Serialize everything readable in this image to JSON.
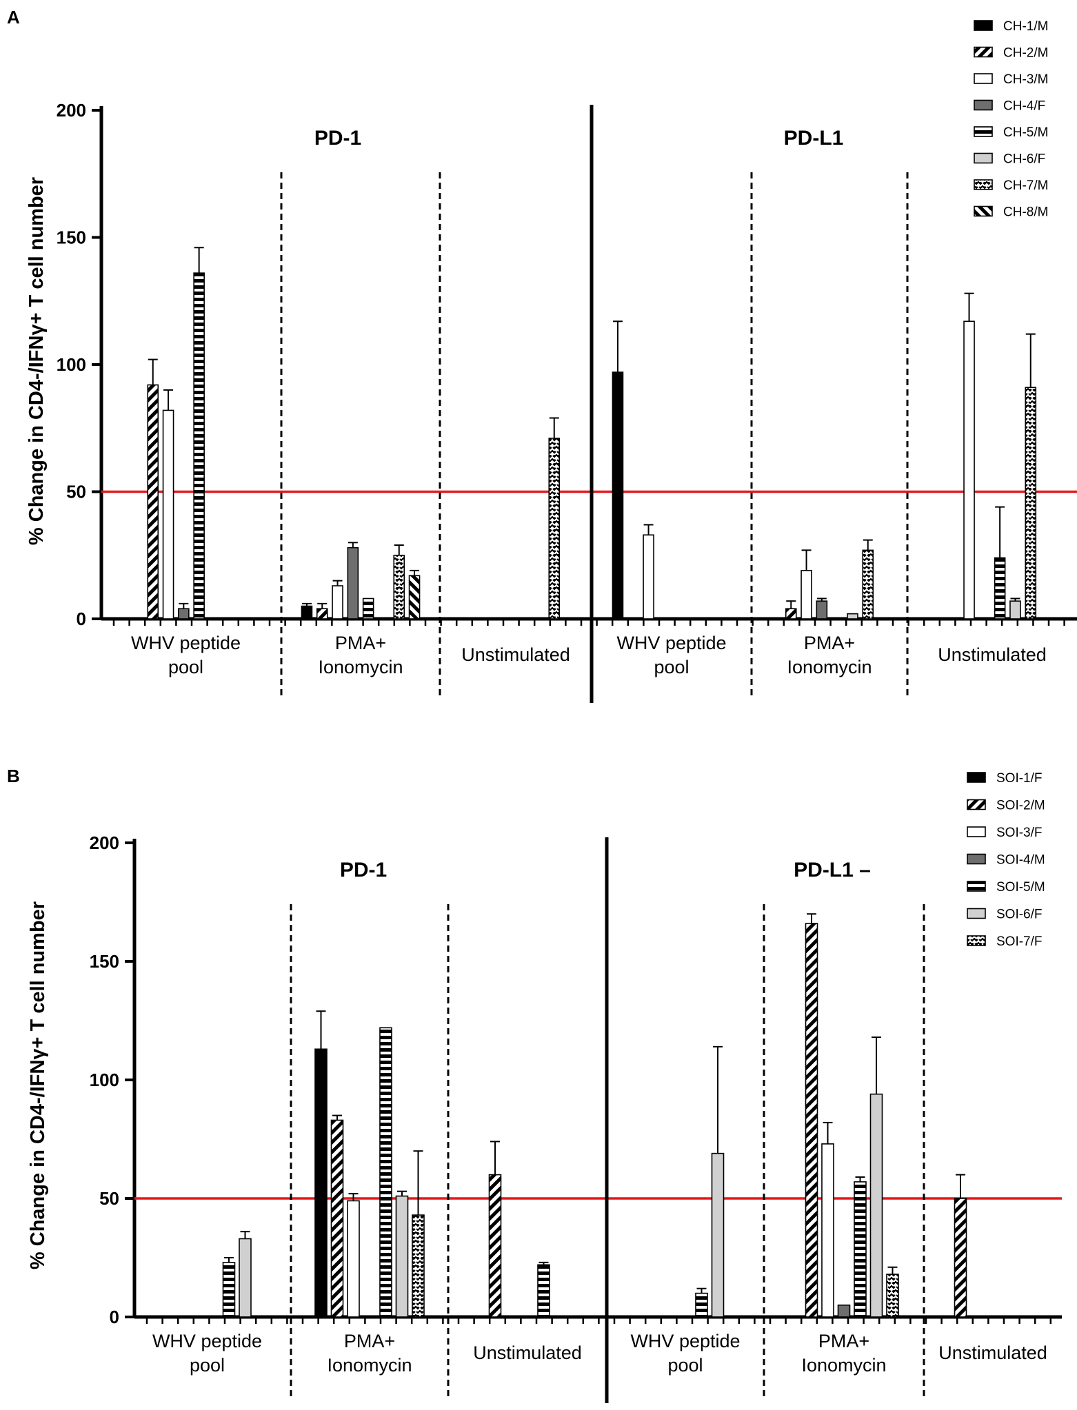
{
  "figure_title": "",
  "colors": {
    "threshold": "#e31a1c",
    "ink": "#000000",
    "dark_gray": "#6e6e6e",
    "light_gray": "#d0d0d0"
  },
  "chart_data": [
    {
      "panel": "A",
      "type": "bar",
      "ylabel": "% Change in CD4-/IFNγ+ T cell number",
      "ylim": [
        0,
        200
      ],
      "yticks": [
        "0",
        "50",
        "100",
        "150",
        "200"
      ],
      "threshold": 50,
      "section_titles": [
        "PD-1",
        "PD-L1"
      ],
      "categories": [
        "WHV peptide pool",
        "PMA+ Ionomycin",
        "Unstimulated",
        "WHV peptide pool",
        "PMA+ Ionomycin",
        "Unstimulated"
      ],
      "category_labels": [
        [
          "WHV peptide",
          "pool"
        ],
        [
          "PMA+",
          "Ionomycin"
        ],
        [
          "Unstimulated"
        ],
        [
          "WHV peptide",
          "pool"
        ],
        [
          "PMA+",
          "Ionomycin"
        ],
        [
          "Unstimulated"
        ]
      ],
      "series": [
        {
          "name": "CH-1/M",
          "pattern": "solid-black",
          "values": [
            0,
            5,
            0,
            97,
            0,
            0
          ],
          "errors": [
            0,
            1,
            0,
            20,
            0,
            0
          ]
        },
        {
          "name": "CH-2/M",
          "pattern": "diag-back",
          "values": [
            92,
            4,
            0,
            0,
            4,
            0
          ],
          "errors": [
            10,
            2,
            0,
            0,
            3,
            0
          ]
        },
        {
          "name": "CH-3/M",
          "pattern": "white",
          "values": [
            82,
            13,
            0,
            33,
            19,
            117
          ],
          "errors": [
            8,
            2,
            0,
            4,
            8,
            11
          ]
        },
        {
          "name": "CH-4/F",
          "pattern": "dark-gray",
          "values": [
            4,
            28,
            0,
            0,
            7,
            0
          ],
          "errors": [
            2,
            2,
            0,
            0,
            1,
            0
          ]
        },
        {
          "name": "CH-5/M",
          "pattern": "horiz-stripes",
          "values": [
            136,
            8,
            0,
            0,
            0,
            24
          ],
          "errors": [
            10,
            0,
            0,
            0,
            0,
            20
          ]
        },
        {
          "name": "CH-6/F",
          "pattern": "light-gray",
          "values": [
            0,
            0,
            0,
            0,
            2,
            7
          ],
          "errors": [
            0,
            0,
            0,
            0,
            0,
            1
          ]
        },
        {
          "name": "CH-7/M",
          "pattern": "zigzag",
          "values": [
            0,
            25,
            71,
            0,
            27,
            91
          ],
          "errors": [
            0,
            4,
            8,
            0,
            4,
            21
          ]
        },
        {
          "name": "CH-8/M",
          "pattern": "diag-fwd",
          "values": [
            0,
            17,
            0,
            0,
            0,
            0
          ],
          "errors": [
            0,
            2,
            0,
            0,
            0,
            0
          ]
        }
      ]
    },
    {
      "panel": "B",
      "type": "bar",
      "ylabel": "% Change in CD4-/IFNγ+ T cell number",
      "ylim": [
        0,
        200
      ],
      "yticks": [
        "0",
        "50",
        "100",
        "150",
        "200"
      ],
      "threshold": 50,
      "section_titles": [
        "PD-1",
        "PD-L1 –"
      ],
      "categories": [
        "WHV peptide pool",
        "PMA+ Ionomycin",
        "Unstimulated",
        "WHV peptide pool",
        "PMA+ Ionomycin",
        "Unstimulated"
      ],
      "category_labels": [
        [
          "WHV peptide",
          "pool"
        ],
        [
          "PMA+",
          "Ionomycin"
        ],
        [
          "Unstimulated"
        ],
        [
          "WHV peptide",
          "pool"
        ],
        [
          "PMA+",
          "Ionomycin"
        ],
        [
          "Unstimulated"
        ]
      ],
      "series": [
        {
          "name": "SOI-1/F",
          "pattern": "solid-black",
          "values": [
            0,
            113,
            0,
            0,
            0,
            0
          ],
          "errors": [
            0,
            16,
            0,
            0,
            0,
            0
          ]
        },
        {
          "name": "SOI-2/M",
          "pattern": "diag-back",
          "values": [
            0,
            83,
            60,
            0,
            166,
            50
          ],
          "errors": [
            0,
            2,
            14,
            0,
            4,
            10
          ]
        },
        {
          "name": "SOI-3/F",
          "pattern": "white",
          "values": [
            0,
            49,
            0,
            0,
            73,
            0
          ],
          "errors": [
            0,
            3,
            0,
            0,
            9,
            0
          ]
        },
        {
          "name": "SOI-4/M",
          "pattern": "dark-gray",
          "values": [
            0,
            0,
            0,
            0,
            5,
            0
          ],
          "errors": [
            0,
            0,
            0,
            0,
            0,
            0
          ]
        },
        {
          "name": "SOI-5/M",
          "pattern": "horiz-stripes",
          "values": [
            23,
            122,
            22,
            10,
            57,
            0
          ],
          "errors": [
            2,
            0,
            1,
            2,
            2,
            0
          ]
        },
        {
          "name": "SOI-6/F",
          "pattern": "light-gray",
          "values": [
            33,
            51,
            0,
            69,
            94,
            0
          ],
          "errors": [
            3,
            2,
            0,
            45,
            24,
            0
          ]
        },
        {
          "name": "SOI-7/F",
          "pattern": "zigzag",
          "values": [
            0,
            43,
            0,
            0,
            18,
            0
          ],
          "errors": [
            0,
            27,
            0,
            0,
            3,
            0
          ]
        }
      ]
    }
  ]
}
